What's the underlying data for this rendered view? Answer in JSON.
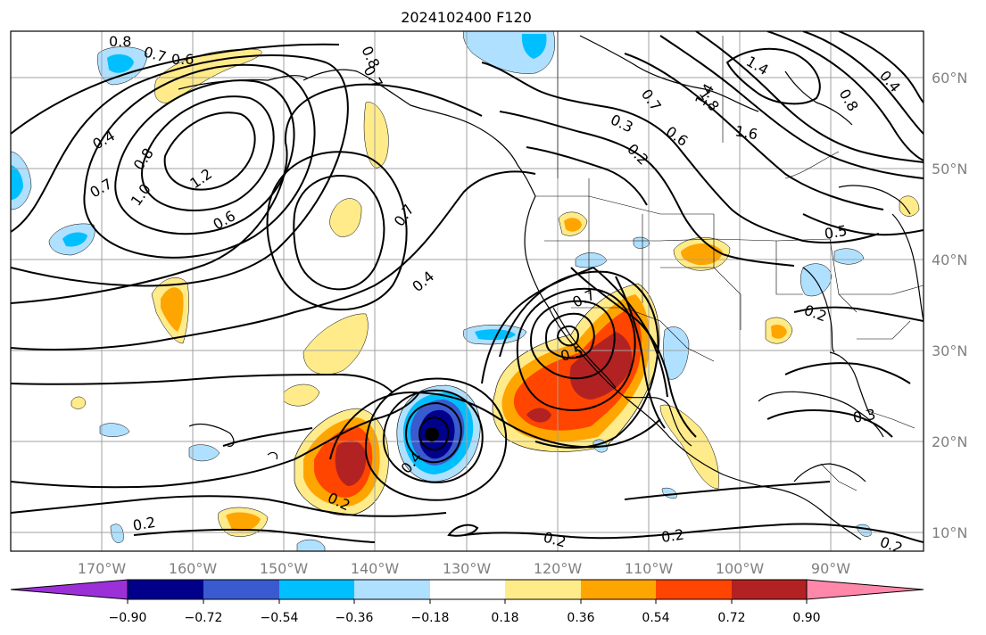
{
  "title": "2024102400 F120",
  "map": {
    "lon_ticks": [
      "170°W",
      "160°W",
      "150°W",
      "140°W",
      "130°W",
      "120°W",
      "110°W",
      "100°W",
      "90°W"
    ],
    "lat_ticks": [
      "60°N",
      "50°N",
      "40°N",
      "30°N",
      "20°N",
      "10°N"
    ],
    "grid": true,
    "contour_color": "#000000",
    "contour_labels": [
      "0.8",
      "0.7",
      "0.6",
      "0.8",
      "0.7",
      "1.4",
      "0.4",
      "0.8",
      "0.4",
      "1.8",
      "1.4",
      "0.6",
      "0.8",
      "0.3",
      "0.2",
      "1.6",
      "0.7",
      "1.2",
      "1.0",
      "0.7",
      "0.6",
      "0.7",
      "0.5",
      "0.4",
      "0.7",
      "0.2",
      "0.5",
      "0.4",
      "0.2",
      "0.3",
      "0.2",
      "0.2",
      "0.2",
      "0.2"
    ]
  },
  "colorbar": {
    "ticks": [
      "−0.90",
      "−0.72",
      "−0.54",
      "−0.36",
      "−0.18",
      "0.18",
      "0.36",
      "0.54",
      "0.72",
      "0.90"
    ],
    "colors": [
      "#9b30d9",
      "#00008b",
      "#3a5bcf",
      "#00bfff",
      "#b0e0ff",
      "#ffffff",
      "#ffeb8a",
      "#ffa500",
      "#ff4500",
      "#b22222",
      "#ff88aa"
    ]
  }
}
